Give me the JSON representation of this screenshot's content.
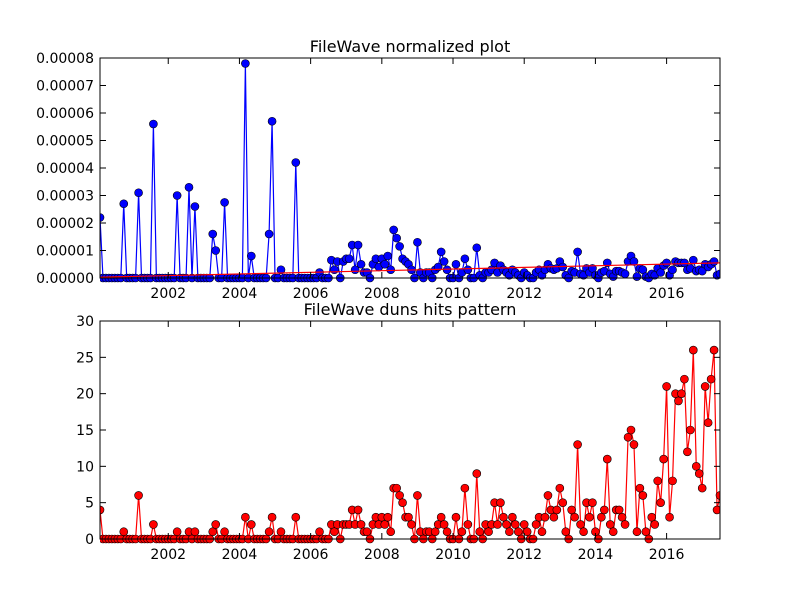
{
  "chart_data": [
    {
      "type": "line",
      "title": "FileWave normalized plot",
      "x": [
        2000.083,
        2000.167,
        2000.25,
        2000.333,
        2000.417,
        2000.5,
        2000.583,
        2000.667,
        2000.75,
        2000.833,
        2000.917,
        2001,
        2001.083,
        2001.167,
        2001.25,
        2001.333,
        2001.417,
        2001.5,
        2001.583,
        2001.667,
        2001.75,
        2001.833,
        2001.917,
        2002,
        2002.083,
        2002.167,
        2002.25,
        2002.333,
        2002.417,
        2002.5,
        2002.583,
        2002.667,
        2002.75,
        2002.833,
        2002.917,
        2003,
        2003.083,
        2003.167,
        2003.25,
        2003.333,
        2003.417,
        2003.5,
        2003.583,
        2003.667,
        2003.75,
        2003.833,
        2003.917,
        2004,
        2004.083,
        2004.167,
        2004.25,
        2004.333,
        2004.417,
        2004.5,
        2004.583,
        2004.667,
        2004.75,
        2004.833,
        2004.917,
        2005,
        2005.083,
        2005.167,
        2005.25,
        2005.333,
        2005.417,
        2005.5,
        2005.583,
        2005.667,
        2005.75,
        2005.833,
        2005.917,
        2006,
        2006.083,
        2006.167,
        2006.25,
        2006.333,
        2006.417,
        2006.5,
        2006.583,
        2006.667,
        2006.75,
        2006.833,
        2006.917,
        2007,
        2007.083,
        2007.167,
        2007.25,
        2007.333,
        2007.417,
        2007.5,
        2007.583,
        2007.667,
        2007.75,
        2007.833,
        2007.917,
        2008,
        2008.083,
        2008.167,
        2008.25,
        2008.333,
        2008.417,
        2008.5,
        2008.583,
        2008.667,
        2008.75,
        2008.833,
        2008.917,
        2009,
        2009.083,
        2009.167,
        2009.25,
        2009.333,
        2009.417,
        2009.5,
        2009.583,
        2009.667,
        2009.75,
        2009.833,
        2009.917,
        2010,
        2010.083,
        2010.167,
        2010.25,
        2010.333,
        2010.417,
        2010.5,
        2010.583,
        2010.667,
        2010.75,
        2010.833,
        2010.917,
        2011,
        2011.083,
        2011.167,
        2011.25,
        2011.333,
        2011.417,
        2011.5,
        2011.583,
        2011.667,
        2011.75,
        2011.833,
        2011.917,
        2012,
        2012.083,
        2012.167,
        2012.25,
        2012.333,
        2012.417,
        2012.5,
        2012.583,
        2012.667,
        2012.75,
        2012.833,
        2012.917,
        2013,
        2013.083,
        2013.167,
        2013.25,
        2013.333,
        2013.417,
        2013.5,
        2013.583,
        2013.667,
        2013.75,
        2013.833,
        2013.917,
        2014,
        2014.083,
        2014.167,
        2014.25,
        2014.333,
        2014.417,
        2014.5,
        2014.583,
        2014.667,
        2014.75,
        2014.833,
        2014.917,
        2015,
        2015.083,
        2015.167,
        2015.25,
        2015.333,
        2015.417,
        2015.5,
        2015.583,
        2015.667,
        2015.75,
        2015.833,
        2015.917,
        2016,
        2016.083,
        2016.167,
        2016.25,
        2016.333,
        2016.417,
        2016.5,
        2016.583,
        2016.667,
        2016.75,
        2016.833,
        2016.917,
        2017,
        2017.083,
        2017.167,
        2017.25,
        2017.333,
        2017.417,
        2017.5
      ],
      "series": [
        {
          "color": "#0000ff",
          "markers": true,
          "values": [
            2.2e-05,
            0,
            0,
            0,
            0,
            0,
            0,
            0,
            2.7e-05,
            0,
            0,
            0,
            0,
            3.1e-05,
            0,
            0,
            0,
            0,
            5.6e-05,
            0,
            0,
            0,
            0,
            0,
            0,
            0,
            3e-05,
            0,
            0,
            0,
            3.3e-05,
            0,
            2.6e-05,
            0,
            0,
            0,
            0,
            0,
            1.6e-05,
            1e-05,
            0,
            0,
            2.75e-05,
            0,
            0,
            0,
            0,
            0,
            0,
            7.8e-05,
            0,
            8e-06,
            0,
            0,
            0,
            0,
            0,
            1.6e-05,
            5.7e-05,
            0,
            0,
            3e-06,
            0,
            0,
            0,
            0,
            4.2e-05,
            0,
            0,
            0,
            0,
            0,
            0,
            0,
            2e-06,
            0,
            0,
            0,
            6.5e-06,
            3e-06,
            6e-06,
            0,
            6e-06,
            7e-06,
            7e-06,
            1.2e-05,
            3e-06,
            1.2e-05,
            5e-06,
            2e-06,
            2e-06,
            0,
            5e-06,
            7e-06,
            4e-06,
            7e-06,
            5e-06,
            8e-06,
            3e-06,
            1.75e-05,
            1.45e-05,
            1.15e-05,
            7e-06,
            6e-06,
            5e-06,
            3e-06,
            0,
            1.3e-05,
            2e-06,
            0,
            2e-06,
            2e-06,
            0,
            3e-06,
            4e-06,
            9.5e-06,
            6e-06,
            3e-06,
            0,
            0,
            5e-06,
            0,
            2e-06,
            7e-06,
            3e-06,
            0,
            0,
            1.1e-05,
            1e-06,
            0,
            2e-06,
            2e-06,
            3e-06,
            5.5e-06,
            2e-06,
            4.5e-06,
            3e-06,
            2e-06,
            1e-06,
            3e-06,
            2e-06,
            1e-06,
            0,
            2e-06,
            1e-06,
            0,
            0,
            2e-06,
            3e-06,
            1e-06,
            3e-06,
            5e-06,
            3.5e-06,
            3e-06,
            3.5e-06,
            6e-06,
            4e-06,
            1e-06,
            0,
            2.5e-06,
            2e-06,
            9.5e-06,
            1.5e-06,
            1e-06,
            3.5e-06,
            2e-06,
            3.5e-06,
            1e-06,
            0,
            2e-06,
            2.5e-06,
            5.5e-06,
            1.5e-06,
            5e-07,
            2.5e-06,
            2.5e-06,
            2e-06,
            1.5e-06,
            6e-06,
            8e-06,
            6e-06,
            5e-07,
            3.5e-06,
            3e-06,
            5e-07,
            0,
            1.5e-06,
            1e-06,
            3.5e-06,
            2e-06,
            4.5e-06,
            5.5e-06,
            1e-06,
            3e-06,
            6e-06,
            5.5e-06,
            5.5e-06,
            5.5e-06,
            3e-06,
            3.5e-06,
            6.5e-06,
            2.5e-06,
            3e-06,
            2.5e-06,
            5e-06,
            4e-06,
            5e-06,
            6e-06,
            1e-06,
            1.5e-06
          ]
        },
        {
          "color": "#ff0000",
          "markers": false,
          "x": [
            2000.083,
            2017.5
          ],
          "values": [
            3e-07,
            5.5e-06
          ]
        }
      ],
      "xlim": [
        2000.083,
        2017.5
      ],
      "xticks": [
        2002,
        2004,
        2006,
        2008,
        2010,
        2012,
        2014,
        2016
      ],
      "ylim": [
        0,
        8e-05
      ],
      "yticks": [
        {
          "value": 0,
          "label": "0.00000"
        },
        1e-05,
        2e-05,
        3e-05,
        4e-05,
        5e-05,
        6e-05,
        7e-05,
        8e-05
      ]
    },
    {
      "type": "line",
      "title": "FileWave duns hits pattern",
      "x": [
        2000.083,
        2000.167,
        2000.25,
        2000.333,
        2000.417,
        2000.5,
        2000.583,
        2000.667,
        2000.75,
        2000.833,
        2000.917,
        2001,
        2001.083,
        2001.167,
        2001.25,
        2001.333,
        2001.417,
        2001.5,
        2001.583,
        2001.667,
        2001.75,
        2001.833,
        2001.917,
        2002,
        2002.083,
        2002.167,
        2002.25,
        2002.333,
        2002.417,
        2002.5,
        2002.583,
        2002.667,
        2002.75,
        2002.833,
        2002.917,
        2003,
        2003.083,
        2003.167,
        2003.25,
        2003.333,
        2003.417,
        2003.5,
        2003.583,
        2003.667,
        2003.75,
        2003.833,
        2003.917,
        2004,
        2004.083,
        2004.167,
        2004.25,
        2004.333,
        2004.417,
        2004.5,
        2004.583,
        2004.667,
        2004.75,
        2004.833,
        2004.917,
        2005,
        2005.083,
        2005.167,
        2005.25,
        2005.333,
        2005.417,
        2005.5,
        2005.583,
        2005.667,
        2005.75,
        2005.833,
        2005.917,
        2006,
        2006.083,
        2006.167,
        2006.25,
        2006.333,
        2006.417,
        2006.5,
        2006.583,
        2006.667,
        2006.75,
        2006.833,
        2006.917,
        2007,
        2007.083,
        2007.167,
        2007.25,
        2007.333,
        2007.417,
        2007.5,
        2007.583,
        2007.667,
        2007.75,
        2007.833,
        2007.917,
        2008,
        2008.083,
        2008.167,
        2008.25,
        2008.333,
        2008.417,
        2008.5,
        2008.583,
        2008.667,
        2008.75,
        2008.833,
        2008.917,
        2009,
        2009.083,
        2009.167,
        2009.25,
        2009.333,
        2009.417,
        2009.5,
        2009.583,
        2009.667,
        2009.75,
        2009.833,
        2009.917,
        2010,
        2010.083,
        2010.167,
        2010.25,
        2010.333,
        2010.417,
        2010.5,
        2010.583,
        2010.667,
        2010.75,
        2010.833,
        2010.917,
        2011,
        2011.083,
        2011.167,
        2011.25,
        2011.333,
        2011.417,
        2011.5,
        2011.583,
        2011.667,
        2011.75,
        2011.833,
        2011.917,
        2012,
        2012.083,
        2012.167,
        2012.25,
        2012.333,
        2012.417,
        2012.5,
        2012.583,
        2012.667,
        2012.75,
        2012.833,
        2012.917,
        2013,
        2013.083,
        2013.167,
        2013.25,
        2013.333,
        2013.417,
        2013.5,
        2013.583,
        2013.667,
        2013.75,
        2013.833,
        2013.917,
        2014,
        2014.083,
        2014.167,
        2014.25,
        2014.333,
        2014.417,
        2014.5,
        2014.583,
        2014.667,
        2014.75,
        2014.833,
        2014.917,
        2015,
        2015.083,
        2015.167,
        2015.25,
        2015.333,
        2015.417,
        2015.5,
        2015.583,
        2015.667,
        2015.75,
        2015.833,
        2015.917,
        2016,
        2016.083,
        2016.167,
        2016.25,
        2016.333,
        2016.417,
        2016.5,
        2016.583,
        2016.667,
        2016.75,
        2016.833,
        2016.917,
        2017,
        2017.083,
        2017.167,
        2017.25,
        2017.333,
        2017.417,
        2017.5
      ],
      "series": [
        {
          "color": "#ff0000",
          "markers": true,
          "values": [
            4,
            0,
            0,
            0,
            0,
            0,
            0,
            0,
            1,
            0,
            0,
            0,
            0,
            6,
            0,
            0,
            0,
            0,
            2,
            0,
            0,
            0,
            0,
            0,
            0,
            0,
            1,
            0,
            0,
            0,
            1,
            0,
            1,
            0,
            0,
            0,
            0,
            0,
            1,
            2,
            0,
            0,
            1,
            0,
            0,
            0,
            0,
            0,
            0,
            3,
            0,
            2,
            0,
            0,
            0,
            0,
            0,
            1,
            3,
            0,
            0,
            1,
            0,
            0,
            0,
            0,
            3,
            0,
            0,
            0,
            0,
            0,
            0,
            0,
            1,
            0,
            0,
            0,
            2,
            1,
            2,
            0,
            2,
            2,
            2,
            4,
            2,
            4,
            2,
            1,
            1,
            0,
            2,
            3,
            2,
            3,
            2,
            3,
            1,
            7,
            7,
            6,
            5,
            3,
            3,
            2,
            0,
            6,
            1,
            0,
            1,
            1,
            0,
            1,
            2,
            3,
            2,
            1,
            0,
            0,
            3,
            0,
            1,
            7,
            2,
            0,
            0,
            9,
            1,
            0,
            2,
            1,
            2,
            5,
            2,
            5,
            3,
            2,
            1,
            3,
            2,
            1,
            0,
            2,
            1,
            0,
            0,
            2,
            3,
            1,
            3,
            6,
            4,
            3,
            4,
            7,
            5,
            1,
            0,
            4,
            3,
            13,
            2,
            1,
            5,
            3,
            5,
            1,
            0,
            3,
            4,
            11,
            2,
            1,
            4,
            4,
            3,
            2,
            14,
            15,
            13,
            1,
            7,
            6,
            1,
            0,
            3,
            2,
            8,
            5,
            11,
            21,
            3,
            8,
            20,
            19,
            20,
            22,
            12,
            15,
            26,
            10,
            9,
            7,
            21,
            16,
            22,
            26,
            4,
            6
          ]
        }
      ],
      "xlim": [
        2000.083,
        2017.5
      ],
      "xticks": [
        2002,
        2004,
        2006,
        2008,
        2010,
        2012,
        2014,
        2016
      ],
      "ylim": [
        0,
        30
      ],
      "yticks": [
        0,
        5,
        10,
        15,
        20,
        25,
        30
      ]
    }
  ]
}
